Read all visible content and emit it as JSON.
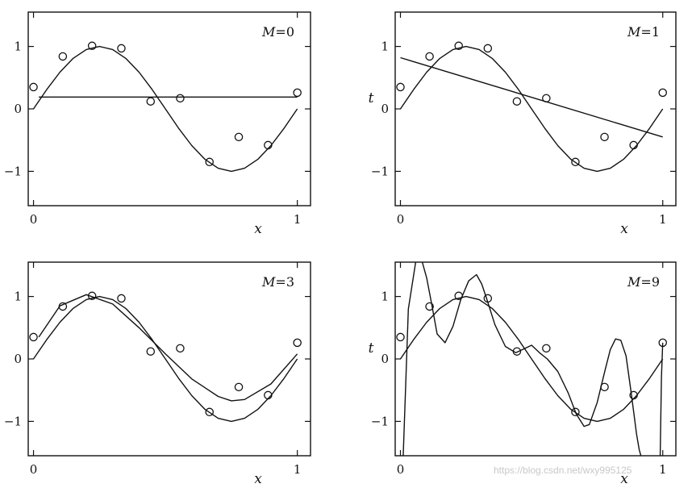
{
  "chart_data": [
    {
      "type": "line",
      "title": "M=0",
      "xlabel": "x",
      "ylabel": "",
      "xlim": [
        -0.02,
        1.05
      ],
      "ylim": [
        -1.55,
        1.55
      ],
      "xticks": [
        0,
        1
      ],
      "xtick_labels": [
        "0",
        "1"
      ],
      "yticks": [
        -1,
        0,
        1
      ],
      "ytick_labels": [
        "−1",
        "0",
        "1"
      ],
      "series": [
        {
          "role": "points",
          "x": [
            0,
            0.111,
            0.222,
            0.333,
            0.444,
            0.556,
            0.667,
            0.778,
            0.889,
            1.0
          ],
          "y": [
            0.35,
            0.84,
            1.01,
            0.97,
            0.12,
            0.17,
            -0.85,
            -0.45,
            -0.58,
            0.26
          ]
        },
        {
          "role": "curve",
          "x": [
            0,
            0.05,
            0.1,
            0.15,
            0.2,
            0.25,
            0.3,
            0.35,
            0.4,
            0.45,
            0.5,
            0.55,
            0.6,
            0.65,
            0.7,
            0.75,
            0.8,
            0.85,
            0.9,
            0.95,
            1.0
          ],
          "y": [
            0,
            0.309,
            0.588,
            0.809,
            0.951,
            1.0,
            0.951,
            0.809,
            0.588,
            0.309,
            0,
            -0.309,
            -0.588,
            -0.809,
            -0.951,
            -1.0,
            -0.951,
            -0.809,
            -0.588,
            -0.309,
            0
          ]
        },
        {
          "role": "fit",
          "x": [
            0.02,
            1.0
          ],
          "y": [
            0.19,
            0.19
          ]
        }
      ]
    },
    {
      "type": "line",
      "title": "M=1",
      "xlabel": "x",
      "ylabel": "t",
      "xlim": [
        -0.02,
        1.05
      ],
      "ylim": [
        -1.55,
        1.55
      ],
      "xticks": [
        0,
        1
      ],
      "xtick_labels": [
        "0",
        "1"
      ],
      "yticks": [
        -1,
        0,
        1
      ],
      "ytick_labels": [
        "−1",
        "0",
        "1"
      ],
      "series": [
        {
          "role": "points",
          "x": [
            0,
            0.111,
            0.222,
            0.333,
            0.444,
            0.556,
            0.667,
            0.778,
            0.889,
            1.0
          ],
          "y": [
            0.35,
            0.84,
            1.01,
            0.97,
            0.12,
            0.17,
            -0.85,
            -0.45,
            -0.58,
            0.26
          ]
        },
        {
          "role": "curve",
          "x": [
            0,
            0.05,
            0.1,
            0.15,
            0.2,
            0.25,
            0.3,
            0.35,
            0.4,
            0.45,
            0.5,
            0.55,
            0.6,
            0.65,
            0.7,
            0.75,
            0.8,
            0.85,
            0.9,
            0.95,
            1.0
          ],
          "y": [
            0,
            0.309,
            0.588,
            0.809,
            0.951,
            1.0,
            0.951,
            0.809,
            0.588,
            0.309,
            0,
            -0.309,
            -0.588,
            -0.809,
            -0.951,
            -1.0,
            -0.951,
            -0.809,
            -0.588,
            -0.309,
            0
          ]
        },
        {
          "role": "fit",
          "x": [
            0,
            1.0
          ],
          "y": [
            0.82,
            -0.45
          ]
        }
      ]
    },
    {
      "type": "line",
      "title": "M=3",
      "xlabel": "x",
      "ylabel": "",
      "xlim": [
        -0.02,
        1.05
      ],
      "ylim": [
        -1.55,
        1.55
      ],
      "xticks": [
        0,
        1
      ],
      "xtick_labels": [
        "0",
        "1"
      ],
      "yticks": [
        -1,
        0,
        1
      ],
      "ytick_labels": [
        "−1",
        "0",
        "1"
      ],
      "series": [
        {
          "role": "points",
          "x": [
            0,
            0.111,
            0.222,
            0.333,
            0.444,
            0.556,
            0.667,
            0.778,
            0.889,
            1.0
          ],
          "y": [
            0.35,
            0.84,
            1.01,
            0.97,
            0.12,
            0.17,
            -0.85,
            -0.45,
            -0.58,
            0.26
          ]
        },
        {
          "role": "curve",
          "x": [
            0,
            0.05,
            0.1,
            0.15,
            0.2,
            0.25,
            0.3,
            0.35,
            0.4,
            0.45,
            0.5,
            0.55,
            0.6,
            0.65,
            0.7,
            0.75,
            0.8,
            0.85,
            0.9,
            0.95,
            1.0
          ],
          "y": [
            0,
            0.309,
            0.588,
            0.809,
            0.951,
            1.0,
            0.951,
            0.809,
            0.588,
            0.309,
            0,
            -0.309,
            -0.588,
            -0.809,
            -0.951,
            -1.0,
            -0.951,
            -0.809,
            -0.588,
            -0.309,
            0
          ]
        },
        {
          "role": "fit",
          "x": [
            0.02,
            0.1,
            0.2,
            0.3,
            0.4,
            0.5,
            0.6,
            0.7,
            0.75,
            0.8,
            0.9,
            1.0
          ],
          "y": [
            0.35,
            0.85,
            1.03,
            0.88,
            0.5,
            0.08,
            -0.32,
            -0.6,
            -0.67,
            -0.65,
            -0.4,
            0.08
          ]
        }
      ]
    },
    {
      "type": "line",
      "title": "M=9",
      "xlabel": "x",
      "ylabel": "t",
      "xlim": [
        -0.02,
        1.05
      ],
      "ylim": [
        -1.55,
        1.55
      ],
      "xticks": [
        0,
        1
      ],
      "xtick_labels": [
        "0",
        "1"
      ],
      "yticks": [
        -1,
        0,
        1
      ],
      "ytick_labels": [
        "−1",
        "0",
        "1"
      ],
      "series": [
        {
          "role": "points",
          "x": [
            0,
            0.111,
            0.222,
            0.333,
            0.444,
            0.556,
            0.667,
            0.778,
            0.889,
            1.0
          ],
          "y": [
            0.35,
            0.84,
            1.01,
            0.97,
            0.12,
            0.17,
            -0.85,
            -0.45,
            -0.58,
            0.26
          ]
        },
        {
          "role": "curve",
          "x": [
            0,
            0.05,
            0.1,
            0.15,
            0.2,
            0.25,
            0.3,
            0.35,
            0.4,
            0.45,
            0.5,
            0.55,
            0.6,
            0.65,
            0.7,
            0.75,
            0.8,
            0.85,
            0.9,
            0.95,
            1.0
          ],
          "y": [
            0,
            0.309,
            0.588,
            0.809,
            0.951,
            1.0,
            0.951,
            0.809,
            0.588,
            0.309,
            0,
            -0.309,
            -0.588,
            -0.809,
            -0.951,
            -1.0,
            -0.951,
            -0.809,
            -0.588,
            -0.309,
            0
          ]
        },
        {
          "role": "fit",
          "x": [
            0.01,
            0.03,
            0.06,
            0.08,
            0.1,
            0.12,
            0.14,
            0.17,
            0.2,
            0.23,
            0.26,
            0.29,
            0.31,
            0.33,
            0.36,
            0.4,
            0.44,
            0.47,
            0.5,
            0.53,
            0.56,
            0.6,
            0.64,
            0.67,
            0.7,
            0.72,
            0.75,
            0.78,
            0.8,
            0.82,
            0.84,
            0.86,
            0.88,
            0.9,
            0.91,
            0.92,
            0.93,
            0.94
          ],
          "y": [
            -1.6,
            0.8,
            1.6,
            1.6,
            1.3,
            0.86,
            0.4,
            0.26,
            0.52,
            0.95,
            1.25,
            1.35,
            1.2,
            0.95,
            0.55,
            0.2,
            0.1,
            0.16,
            0.22,
            0.1,
            0.0,
            -0.2,
            -0.55,
            -0.88,
            -1.08,
            -1.05,
            -0.7,
            -0.18,
            0.15,
            0.32,
            0.3,
            0.05,
            -0.55,
            -1.2,
            -1.45,
            -1.6,
            -1.6,
            -1.6
          ]
        },
        {
          "role": "fit-right-edge",
          "x": [
            0.99,
            0.995,
            1.0
          ],
          "y": [
            -1.6,
            -0.3,
            0.26
          ]
        }
      ]
    }
  ],
  "watermark": "https://blog.csdn.net/wxy995125"
}
